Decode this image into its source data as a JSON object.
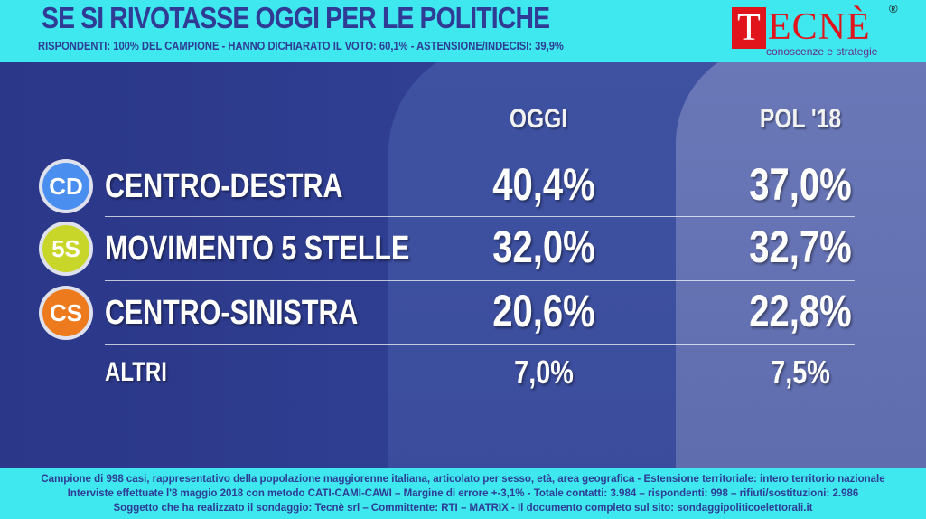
{
  "header": {
    "title": "SE SI RIVOTASSE OGGI PER LE POLITICHE",
    "subtitle": "RISPONDENTI: 100% DEL CAMPIONE - HANNO DICHIARATO IL VOTO: 60,1% - ASTENSIONE/INDECISI: 39,9%"
  },
  "logo": {
    "first_letter": "T",
    "rest": "ECNÈ",
    "registered": "®",
    "tagline": "conoscenze e strategie"
  },
  "columns": {
    "today": "OGGI",
    "previous": "POL '18"
  },
  "rows": [
    {
      "badge": "CD",
      "badge_color": "#4a8fef",
      "party": "CENTRO-DESTRA",
      "today": "40,4%",
      "previous": "37,0%"
    },
    {
      "badge": "5S",
      "badge_color": "#c8d62a",
      "party": "MOVIMENTO 5 STELLE",
      "today": "32,0%",
      "previous": "32,7%"
    },
    {
      "badge": "CS",
      "badge_color": "#ee7a1e",
      "party": "CENTRO-SINISTRA",
      "today": "20,6%",
      "previous": "22,8%"
    },
    {
      "badge": "",
      "badge_color": "",
      "party": "ALTRI",
      "today": "7,0%",
      "previous": "7,5%"
    }
  ],
  "footer": {
    "line1": "Campione di  998 casi, rappresentativo della popolazione maggiorenne italiana, articolato per sesso, età, area geografica - Estensione territoriale: intero territorio nazionale",
    "line2": "Interviste effettuate l'8 maggio 2018 con metodo CATI-CAMI-CAWI – Margine di errore +-3,1%  - Totale contatti: 3.984 – rispondenti: 998 – rifiuti/sostituzioni: 2.986",
    "line3": "Soggetto che ha realizzato il sondaggio: Tecnè srl – Committente: RTI – MATRIX  - Il documento completo sul sito: sondaggipoliticoelettorali.it"
  },
  "colors": {
    "header_bg": "#3ee8ee",
    "title_color": "#2f3b95",
    "brand_red": "#e1141c",
    "main_bg": "#2b3788"
  }
}
